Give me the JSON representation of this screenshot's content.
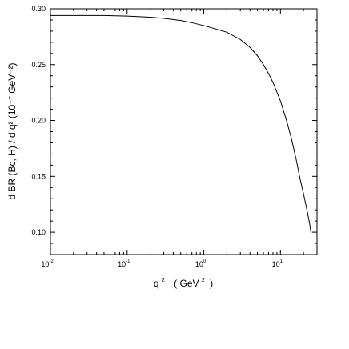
{
  "chart_data": {
    "type": "line",
    "xlabel": {
      "base": "q",
      "exp": "2",
      "unit_open": "( GeV",
      "unit_exp": "2",
      "unit_close": ")"
    },
    "ylabel": "d BR (Bc, H) / d q²  (10⁻⁷ GeV⁻²)",
    "x_scale": "log",
    "xlim": [
      0.01,
      30
    ],
    "ylim": [
      0.08,
      0.3
    ],
    "x_ticks": [
      {
        "base": "10",
        "exp": "-2",
        "value": 0.01
      },
      {
        "base": "10",
        "exp": "-1",
        "value": 0.1
      },
      {
        "base": "10",
        "exp": "0",
        "value": 1
      },
      {
        "base": "10",
        "exp": "1",
        "value": 10
      }
    ],
    "y_ticks": [
      {
        "label": "0.10",
        "value": 0.1
      },
      {
        "label": "0.15",
        "value": 0.15
      },
      {
        "label": "0.20",
        "value": 0.2
      },
      {
        "label": "0.25",
        "value": 0.25
      },
      {
        "label": "0.30",
        "value": 0.3
      }
    ],
    "grid": false,
    "series": [
      {
        "color": "#000000",
        "x": [
          0.01,
          0.05,
          0.1,
          0.2,
          0.3,
          0.5,
          0.7,
          1.0,
          1.5,
          2.0,
          3.0,
          4.0,
          5.0,
          6.0,
          7.0,
          8.0,
          10.0,
          12.0,
          14.0,
          16.0,
          18.0,
          20.0,
          22.0,
          24.0,
          25.0,
          25.5
        ],
        "y": [
          0.294,
          0.294,
          0.2935,
          0.2925,
          0.2915,
          0.2895,
          0.2875,
          0.285,
          0.2815,
          0.279,
          0.2725,
          0.2655,
          0.258,
          0.25,
          0.242,
          0.234,
          0.2175,
          0.2,
          0.183,
          0.1655,
          0.148,
          0.1345,
          0.121,
          0.108,
          0.1,
          0.1
        ]
      }
    ]
  }
}
